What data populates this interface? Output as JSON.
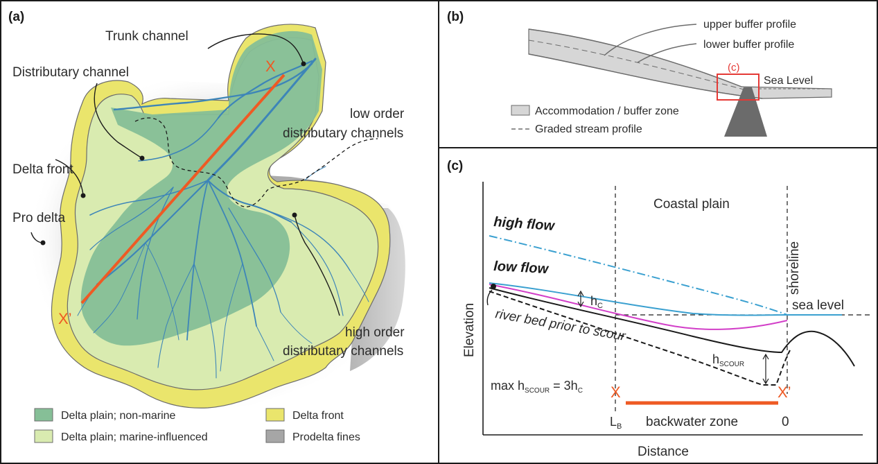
{
  "panel_a": {
    "tag": "(a)",
    "labels": {
      "trunk_channel": "Trunk channel",
      "distributary_channel": "Distributary channel",
      "low_order_1": "low order",
      "low_order_2": "distributary channels",
      "delta_front": "Delta front",
      "pro_delta": "Pro delta",
      "high_order_1": "high order",
      "high_order_2": "distributary channels",
      "x_start": "X",
      "x_end": "X’"
    },
    "legend": [
      {
        "label": "Delta plain; non-marine",
        "color": "#86bf97"
      },
      {
        "label": "Delta plain; marine-influenced",
        "color": "#d9ebb0"
      },
      {
        "label": "Delta front",
        "color": "#eae56c"
      },
      {
        "label": "Prodelta fines",
        "color": "#a6a6a6"
      }
    ]
  },
  "panel_b": {
    "tag": "(b)",
    "labels": {
      "upper_buffer": "upper buffer profile",
      "lower_buffer": "lower buffer profile",
      "inset_tag": "(c)",
      "sea_level": "Sea Level"
    },
    "legend": [
      {
        "label": "Accommodation / buffer zone"
      },
      {
        "label": "Graded stream profile"
      }
    ]
  },
  "panel_c": {
    "tag": "(c)",
    "labels": {
      "coastal_plain": "Coastal plain",
      "shoreline": "shoreline",
      "high_flow": "high flow",
      "low_flow": "low flow",
      "sea_level": "sea level",
      "hc_main": "h",
      "hc_sub": "C",
      "river_bed": "river bed prior to scour",
      "hscour_main": "h",
      "hscour_sub": "SCOUR",
      "max_main": "max h",
      "max_sub": "SCOUR",
      "max_rest": " = 3h",
      "max_rest_sub": "C",
      "x_start": "X",
      "x_end": "X’",
      "lb_main": "L",
      "lb_sub": "B",
      "backwater": "backwater zone",
      "zero": "0",
      "y_axis": "Elevation",
      "x_axis": "Distance"
    },
    "colors": {
      "high_flow": "#3aa0d0",
      "low_flow": "#3aa0d0",
      "scour_profile": "#d23fc8",
      "cross_section": "#ee5a24"
    }
  }
}
